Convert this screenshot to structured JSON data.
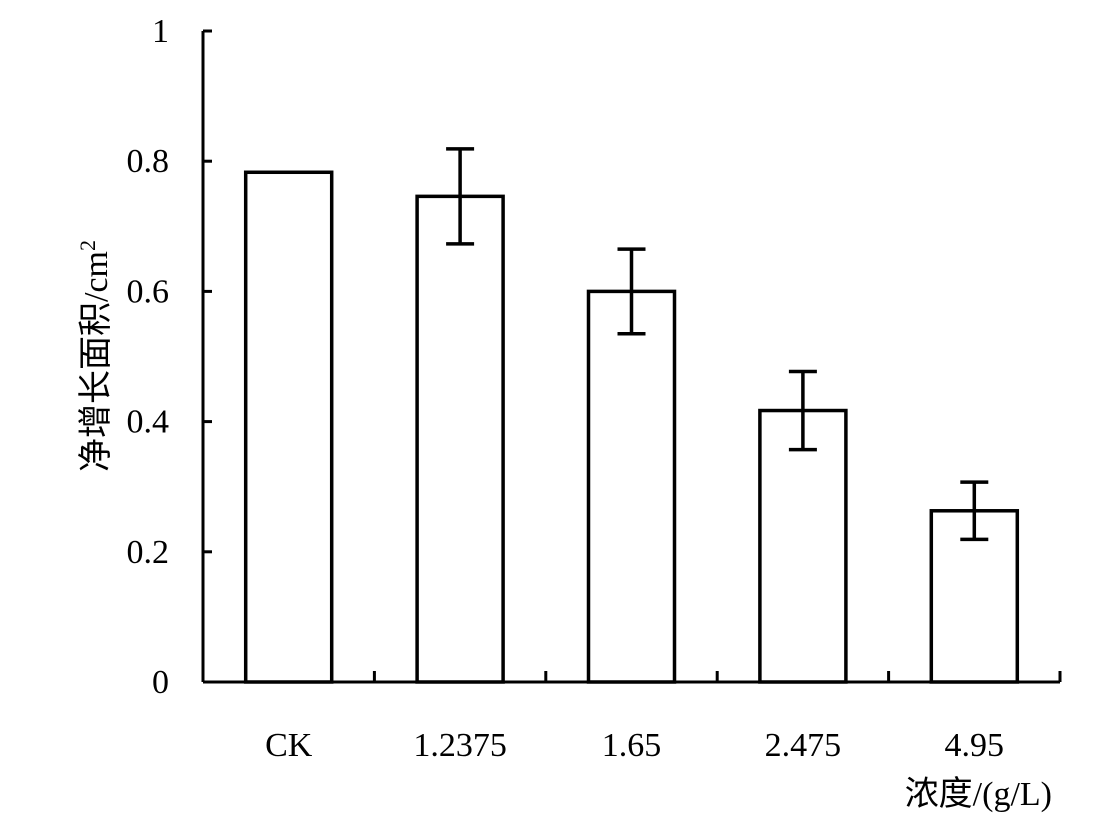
{
  "chart_data": {
    "type": "bar",
    "categories": [
      "CK",
      "1.2375",
      "1.65",
      "2.475",
      "4.95"
    ],
    "values": [
      0.783,
      0.746,
      0.6,
      0.417,
      0.263
    ],
    "error": [
      null,
      0.073,
      0.065,
      0.06,
      0.044
    ],
    "xlabel": "浓度/(g/L)",
    "ylabel": "净增长面积/cm",
    "ylabel_superscript": "2",
    "ylim": [
      0,
      1
    ],
    "yticks": [
      "0",
      "0.2",
      "0.4",
      "0.6",
      "0.8",
      "1"
    ],
    "ytick_values": [
      0,
      0.2,
      0.4,
      0.6,
      0.8,
      1
    ],
    "grid": false,
    "legend": "none",
    "bar_fill": "#ffffff",
    "bar_stroke": "#000000"
  }
}
